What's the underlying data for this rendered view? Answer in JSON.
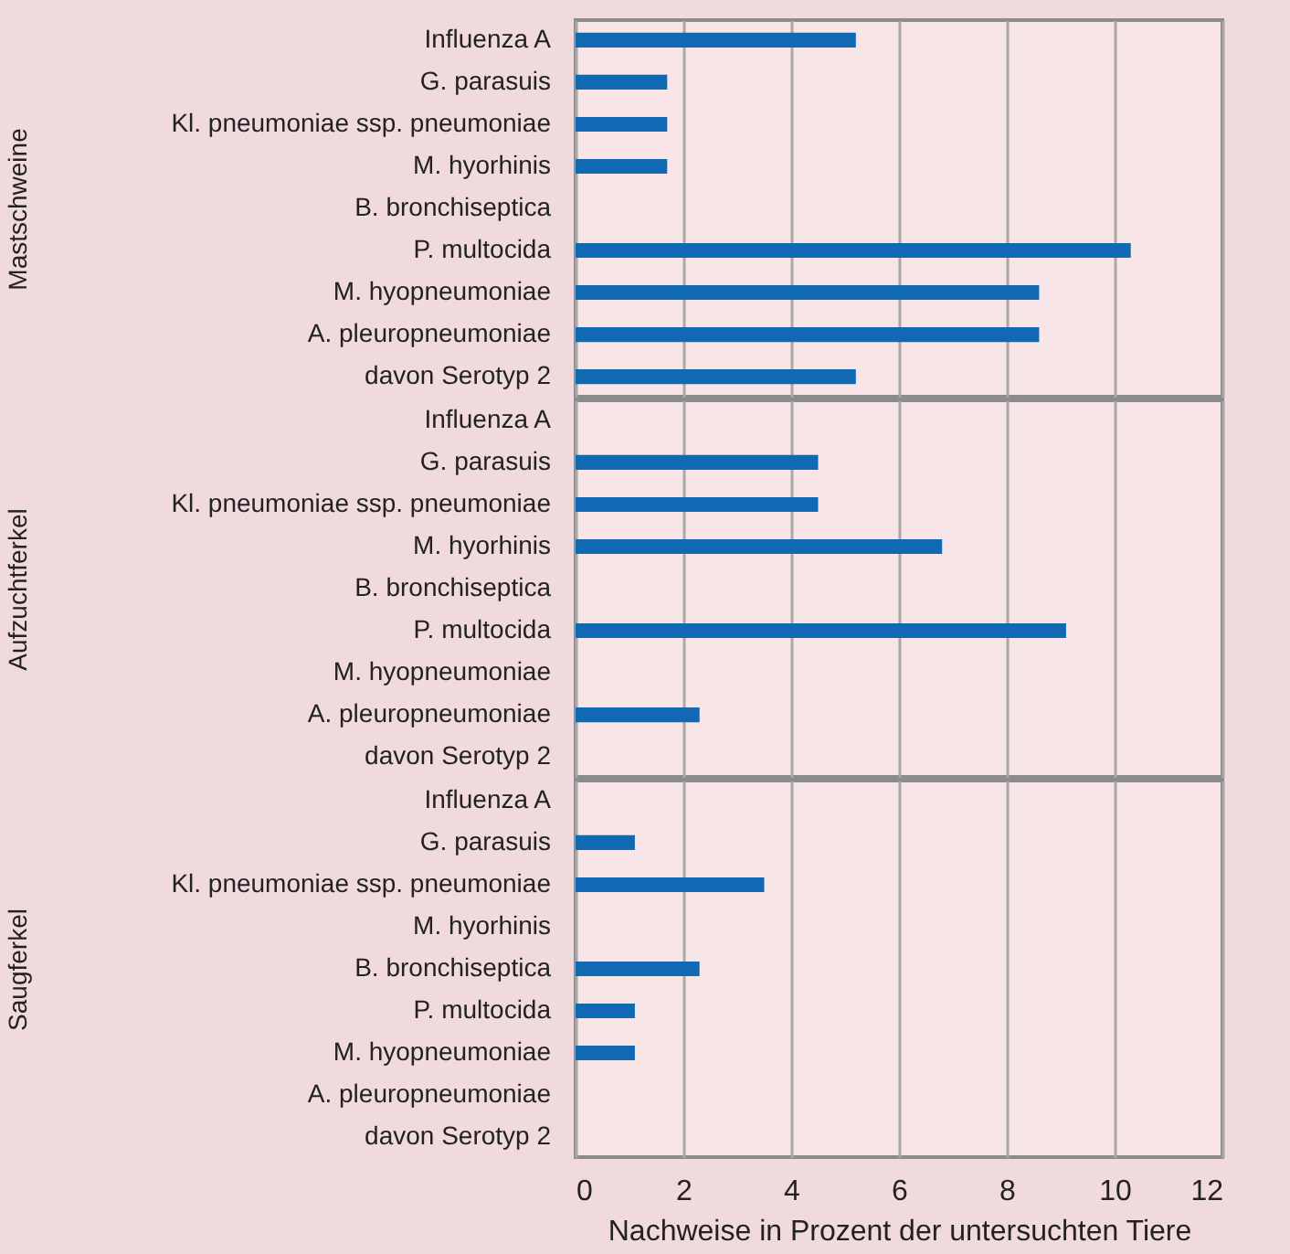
{
  "chart_data": [
    {
      "type": "bar",
      "orientation": "horizontal",
      "ylabel": "Mastschweine",
      "categories": [
        "Influenza A",
        "G. parasuis",
        "Kl. pneumoniae ssp. pneumoniae",
        "M. hyorhinis",
        "B. bronchiseptica",
        "P. multocida",
        "M. hyopneumoniae",
        "A. pleuropneumoniae",
        "davon Serotyp 2"
      ],
      "values": [
        5.2,
        1.7,
        1.7,
        1.7,
        null,
        10.3,
        8.6,
        8.6,
        5.2
      ],
      "color": "#1169b3",
      "xlim": [
        0,
        12
      ],
      "xticks": [
        0,
        2,
        4,
        6,
        8,
        10,
        12
      ],
      "grid": "x",
      "tick_labels": "y"
    },
    {
      "type": "bar",
      "orientation": "horizontal",
      "ylabel": "Aufzuchtferkel",
      "categories": [
        "Influenza A",
        "G. parasuis",
        "Kl. pneumoniae ssp. pneumoniae",
        "M. hyorhinis",
        "B. bronchiseptica",
        "P. multocida",
        "M. hyopneumoniae",
        "A. pleuropneumoniae",
        "davon Serotyp 2"
      ],
      "values": [
        null,
        4.5,
        4.5,
        6.8,
        null,
        9.1,
        null,
        2.3,
        null
      ],
      "color": "#1169b3",
      "xlim": [
        0,
        12
      ],
      "xticks": [
        0,
        2,
        4,
        6,
        8,
        10,
        12
      ],
      "grid": "x",
      "tick_labels": "y"
    },
    {
      "type": "bar",
      "orientation": "horizontal",
      "ylabel": "Saugferkel",
      "xlabel": "Nachweise in Prozent der untersuchten Tiere",
      "categories": [
        "Influenza A",
        "G. parasuis",
        "Kl. pneumoniae ssp. pneumoniae",
        "M. hyorhinis",
        "B. bronchiseptica",
        "P. multocida",
        "M. hyopneumoniae",
        "A. pleuropneumoniae",
        "davon Serotyp 2"
      ],
      "values": [
        null,
        1.1,
        3.5,
        null,
        2.3,
        1.1,
        1.1,
        null,
        null
      ],
      "color": "#1169b3",
      "xlim": [
        0,
        12
      ],
      "xticks": [
        0,
        2,
        4,
        6,
        8,
        10,
        12
      ],
      "grid": "x"
    }
  ]
}
